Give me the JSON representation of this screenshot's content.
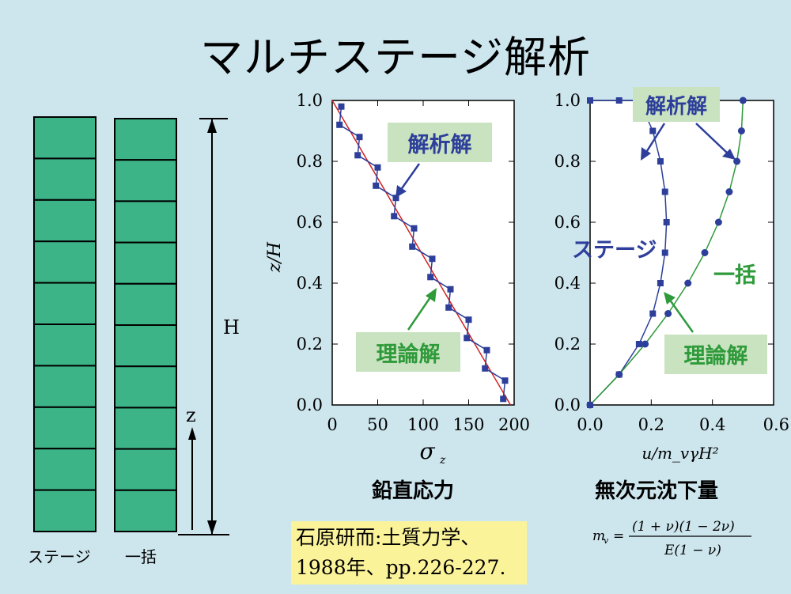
{
  "title": "マルチステージ解析",
  "colors": {
    "bg": "#cde6ee",
    "layer": "#3db488",
    "blue": "#2d3f9a",
    "green": "#2e9a3a",
    "note_bg": "#c9e2c0",
    "ref_bg": "#fbf39a",
    "red": "#d02020"
  },
  "left_diagram": {
    "stage_label": "ステージ",
    "bulk_label": "一括",
    "height_label": "H",
    "z_label": "z",
    "layers": 10
  },
  "chart1": {
    "caption": "鉛直応力",
    "xlabel_main": "σ",
    "xlabel_sub": "z",
    "ylabel": "z/H",
    "x_ticks": [
      "0",
      "50",
      "100",
      "150",
      "200"
    ],
    "y_ticks": [
      "0.0",
      "0.2",
      "0.4",
      "0.6",
      "0.8",
      "1.0"
    ],
    "note_analytical": "解析解",
    "note_theory": "理論解"
  },
  "chart2": {
    "caption": "無次元沈下量",
    "xlabel": "u/m_vγH²",
    "x_ticks": [
      "0.0",
      "0.2",
      "0.4",
      "0.6"
    ],
    "y_ticks": [
      "0.0",
      "0.2",
      "0.4",
      "0.6",
      "0.8",
      "1.0"
    ],
    "note_analytical": "解析解",
    "note_theory": "理論解",
    "label_stage": "ステージ",
    "label_bulk": "一括",
    "formula": "m_v = (1+ν)(1−2ν) / E(1−ν)"
  },
  "reference": {
    "line1": "石原研而:土質力学、",
    "line2": "1988年、pp.226-227."
  },
  "chart_data": [
    {
      "type": "line",
      "xlabel": "σz",
      "ylabel": "z/H",
      "xlim": [
        0,
        200
      ],
      "ylim": [
        0,
        1.0
      ],
      "series": [
        {
          "name": "理論解",
          "x": [
            0,
            196
          ],
          "y": [
            1.0,
            0.0
          ]
        },
        {
          "name": "解析解",
          "x": [
            10,
            8,
            30,
            28,
            50,
            48,
            70,
            68,
            90,
            88,
            110,
            108,
            130,
            128,
            150,
            148,
            170,
            168,
            190,
            188
          ],
          "y": [
            0.98,
            0.92,
            0.88,
            0.82,
            0.78,
            0.72,
            0.68,
            0.62,
            0.58,
            0.52,
            0.48,
            0.42,
            0.38,
            0.32,
            0.28,
            0.22,
            0.18,
            0.12,
            0.08,
            0.02
          ]
        }
      ]
    },
    {
      "type": "line",
      "xlabel": "u/mvγH²",
      "ylabel": "z/H",
      "xlim": [
        0,
        0.6
      ],
      "ylim": [
        0,
        1.0
      ],
      "series": [
        {
          "name": "ステージ",
          "x": [
            0,
            0.095,
            0.16,
            0.205,
            0.23,
            0.245,
            0.25,
            0.245,
            0.23,
            0.205,
            0.16,
            0.095,
            0
          ],
          "y": [
            0,
            0.1,
            0.2,
            0.3,
            0.4,
            0.5,
            0.6,
            0.7,
            0.8,
            0.9,
            1.0,
            1.0,
            1.0
          ]
        },
        {
          "name": "一括",
          "x": [
            0,
            0.095,
            0.18,
            0.255,
            0.32,
            0.375,
            0.42,
            0.455,
            0.48,
            0.495,
            0.5
          ],
          "y": [
            0,
            0.1,
            0.2,
            0.3,
            0.4,
            0.5,
            0.6,
            0.7,
            0.8,
            0.9,
            1.0
          ]
        }
      ]
    }
  ]
}
